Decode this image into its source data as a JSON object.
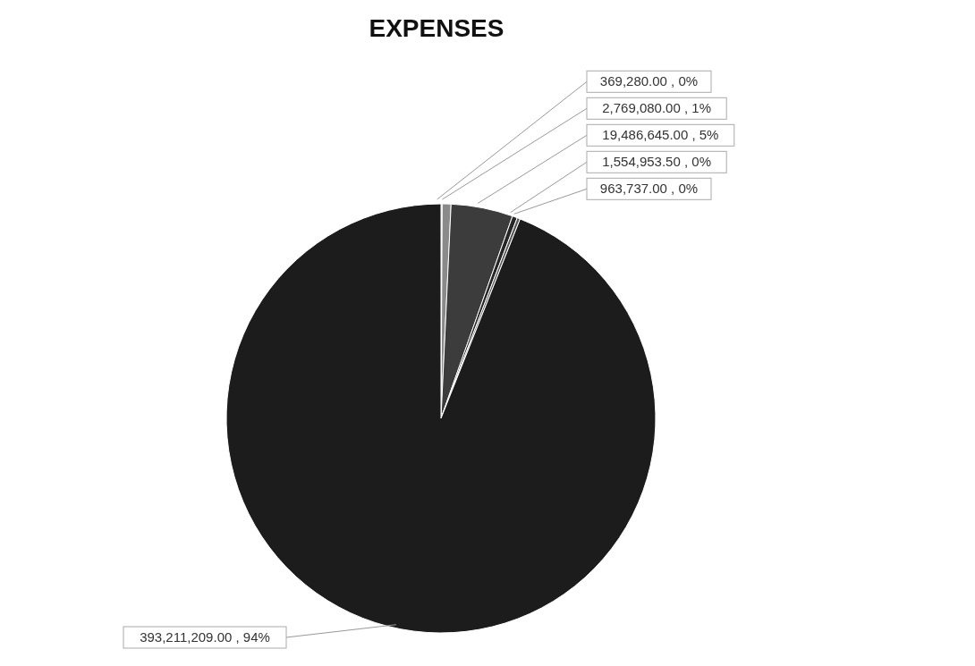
{
  "chart_data": {
    "type": "pie",
    "title": "EXPENSES",
    "categories": [
      null,
      null,
      null,
      null,
      null,
      null
    ],
    "values": [
      369280.0,
      2769080.0,
      19486645.0,
      1554953.5,
      963737.0,
      393211209.0
    ],
    "colors": [
      "#b5b5b5",
      "#8a8a8a",
      "#3c3c3c",
      "#262626",
      "#5a5a5a",
      "#1c1c1c"
    ],
    "value_labels": [
      "369,280.00 , 0%",
      "2,769,080.00 , 1%",
      "19,486,645.00 , 5%",
      "1,554,953.50 , 0%",
      "963,737.00 , 0%",
      "393,211,209.00 , 94%"
    ]
  }
}
